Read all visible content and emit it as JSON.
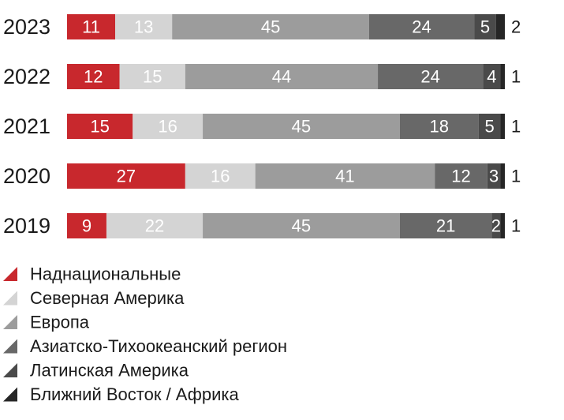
{
  "chart_data": {
    "type": "bar",
    "orientation": "horizontal",
    "stacked": true,
    "categories": [
      "2023",
      "2022",
      "2021",
      "2020",
      "2019"
    ],
    "series": [
      {
        "name": "Наднациональные",
        "color": "#c8282d",
        "label_color": "#ffffff",
        "values": [
          11,
          12,
          15,
          27,
          9
        ]
      },
      {
        "name": "Северная Америка",
        "color": "#d4d4d4",
        "label_color": "#ffffff",
        "values": [
          13,
          15,
          16,
          16,
          22
        ]
      },
      {
        "name": "Европа",
        "color": "#9c9c9c",
        "label_color": "#ffffff",
        "values": [
          45,
          44,
          45,
          41,
          45
        ]
      },
      {
        "name": "Азиатско-Тихоокеанский регион",
        "color": "#686868",
        "label_color": "#ffffff",
        "values": [
          24,
          24,
          18,
          12,
          21
        ]
      },
      {
        "name": "Латинская Америка",
        "color": "#4a4a4a",
        "label_color": "#ffffff",
        "values": [
          5,
          4,
          5,
          3,
          2
        ]
      },
      {
        "name": "Ближний Восток / Африка",
        "color": "#262626",
        "label_color": "#1a1a1a",
        "values": [
          2,
          1,
          1,
          1,
          1
        ]
      }
    ],
    "last_series_label_outside": true,
    "legend_position": "bottom-left",
    "grid": false
  }
}
